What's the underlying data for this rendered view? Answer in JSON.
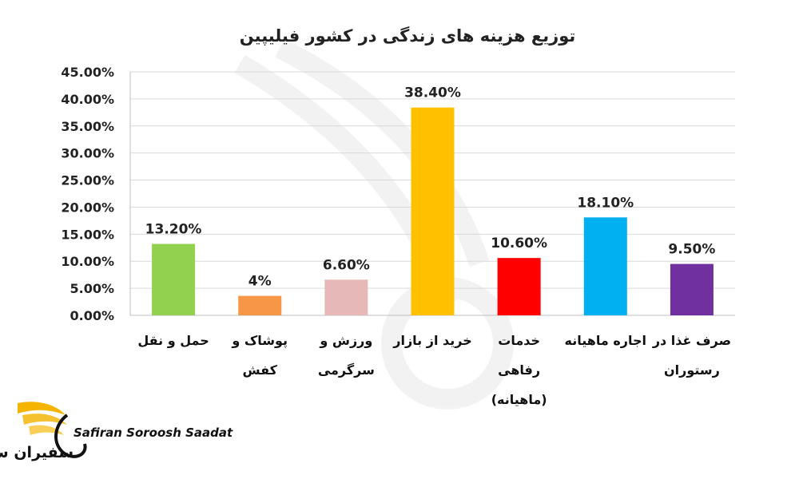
{
  "chart_data": {
    "type": "bar",
    "title": "توزیع هزینه های زندگی در کشور فیلیپین",
    "categories": [
      [
        "حمل و نقل"
      ],
      [
        "پوشاک و",
        "کفش"
      ],
      [
        "ورزش و",
        "سرگرمی"
      ],
      [
        "خرید از بازار"
      ],
      [
        "خدمات",
        "رفاهی",
        "(ماهیانه)"
      ],
      [
        "اجاره ماهیانه"
      ],
      [
        "صرف غذا در",
        "رستوران"
      ]
    ],
    "values": [
      13.2,
      3.6,
      6.6,
      38.4,
      10.6,
      18.1,
      9.5
    ],
    "data_labels": [
      "13.20%",
      "4%",
      "6.60%",
      "38.40%",
      "10.60%",
      "18.10%",
      "9.50%"
    ],
    "colors": [
      "#92d050",
      "#f79646",
      "#e6b9b8",
      "#ffc000",
      "#ff0000",
      "#00b0f0",
      "#7030a0"
    ],
    "y_ticks": [
      "0.00%",
      "5.00%",
      "10.00%",
      "15.00%",
      "20.00%",
      "25.00%",
      "30.00%",
      "35.00%",
      "40.00%",
      "45.00%"
    ],
    "ylim": [
      0,
      45
    ],
    "grid": true,
    "legend": "none"
  },
  "branding": {
    "name_en": "Safiran Soroosh Saadat",
    "name_fa": "سفیران سروش سعادت",
    "accent": "#f4b400"
  }
}
